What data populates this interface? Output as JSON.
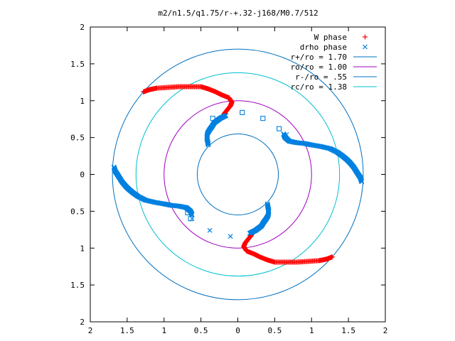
{
  "chart_data": {
    "type": "scatter",
    "title": "m2/n1.5/q1.75/r-+.32-j168/M0.7/512",
    "xlabel": "",
    "ylabel": "",
    "xlim": [
      -2,
      2
    ],
    "ylim": [
      -2,
      2
    ],
    "x_ticks": [
      "2",
      "1.5",
      "1",
      "0.5",
      "0",
      "0.5",
      "1",
      "1.5",
      "2"
    ],
    "y_ticks": [
      "2",
      "1.5",
      "1",
      "0.5",
      "0",
      "0.5",
      "1",
      "1.5",
      "2"
    ],
    "grid": false,
    "legend_position": "top-right",
    "legend": [
      {
        "label": "W phase",
        "marker": "+",
        "color": "#ff0000"
      },
      {
        "label": "drho phase",
        "marker": "x",
        "color": "#0080e0"
      },
      {
        "label": "r+/ro = 1.70",
        "marker": "line",
        "color": "#0070c0"
      },
      {
        "label": "ro/ro = 1.00",
        "marker": "line",
        "color": "#a000c0"
      },
      {
        "label": "r-/ro = .55",
        "marker": "line",
        "color": "#0070c0"
      },
      {
        "label": "rc/ro = 1.38",
        "marker": "line",
        "color": "#00c0d0"
      }
    ],
    "circles": [
      {
        "name": "r+/ro = 1.70",
        "radius": 1.7,
        "color": "#0070c0"
      },
      {
        "name": "ro/ro = 1.00",
        "radius": 1.0,
        "color": "#a000c0"
      },
      {
        "name": "r-/ro = .55",
        "radius": 0.55,
        "color": "#0070c0"
      },
      {
        "name": "rc/ro = 1.38",
        "radius": 1.38,
        "color": "#00c0d0"
      }
    ],
    "series": [
      {
        "name": "W phase",
        "color": "#ff0000",
        "marker": "+",
        "arms": [
          [
            [
              -1.28,
              1.12
            ],
            [
              -1.2,
              1.15
            ],
            [
              -1.1,
              1.17
            ],
            [
              -0.95,
              1.18
            ],
            [
              -0.8,
              1.19
            ],
            [
              -0.65,
              1.19
            ],
            [
              -0.5,
              1.19
            ],
            [
              -0.4,
              1.16
            ],
            [
              -0.3,
              1.12
            ],
            [
              -0.22,
              1.08
            ],
            [
              -0.12,
              1.04
            ],
            [
              -0.08,
              0.98
            ],
            [
              -0.1,
              0.93
            ],
            [
              -0.14,
              0.88
            ],
            [
              -0.18,
              0.83
            ],
            [
              -0.2,
              0.79
            ]
          ],
          [
            [
              1.28,
              -1.12
            ],
            [
              1.2,
              -1.15
            ],
            [
              1.1,
              -1.17
            ],
            [
              0.95,
              -1.18
            ],
            [
              0.8,
              -1.19
            ],
            [
              0.65,
              -1.19
            ],
            [
              0.5,
              -1.19
            ],
            [
              0.4,
              -1.16
            ],
            [
              0.3,
              -1.12
            ],
            [
              0.22,
              -1.08
            ],
            [
              0.12,
              -1.04
            ],
            [
              0.08,
              -0.98
            ],
            [
              0.1,
              -0.93
            ],
            [
              0.14,
              -0.88
            ],
            [
              0.18,
              -0.83
            ],
            [
              0.2,
              -0.79
            ]
          ]
        ]
      },
      {
        "name": "drho phase",
        "color": "#0080e0",
        "marker": "x",
        "arms": [
          [
            [
              -0.4,
              0.4
            ],
            [
              -0.41,
              0.45
            ],
            [
              -0.42,
              0.5
            ],
            [
              -0.41,
              0.56
            ],
            [
              -0.38,
              0.61
            ],
            [
              -0.35,
              0.65
            ],
            [
              -0.32,
              0.7
            ],
            [
              -0.28,
              0.73
            ],
            [
              -0.24,
              0.76
            ],
            [
              -0.2,
              0.78
            ],
            [
              -0.16,
              0.8
            ]
          ],
          [
            [
              0.4,
              -0.4
            ],
            [
              0.41,
              -0.45
            ],
            [
              0.42,
              -0.5
            ],
            [
              0.41,
              -0.56
            ],
            [
              0.38,
              -0.61
            ],
            [
              0.35,
              -0.65
            ],
            [
              0.32,
              -0.7
            ],
            [
              0.28,
              -0.73
            ],
            [
              0.24,
              -0.76
            ],
            [
              0.2,
              -0.78
            ],
            [
              0.16,
              -0.8
            ]
          ],
          [
            [
              1.68,
              -0.1
            ],
            [
              1.66,
              -0.04
            ],
            [
              1.62,
              0.02
            ],
            [
              1.57,
              0.1
            ],
            [
              1.52,
              0.16
            ],
            [
              1.48,
              0.2
            ],
            [
              1.42,
              0.25
            ],
            [
              1.35,
              0.3
            ],
            [
              1.25,
              0.35
            ],
            [
              1.12,
              0.38
            ],
            [
              1.0,
              0.4
            ],
            [
              0.9,
              0.42
            ],
            [
              0.8,
              0.43
            ],
            [
              0.7,
              0.45
            ],
            [
              0.64,
              0.5
            ],
            [
              0.62,
              0.55
            ]
          ],
          [
            [
              -1.68,
              0.1
            ],
            [
              -1.66,
              0.04
            ],
            [
              -1.62,
              -0.02
            ],
            [
              -1.57,
              -0.1
            ],
            [
              -1.52,
              -0.16
            ],
            [
              -1.48,
              -0.2
            ],
            [
              -1.42,
              -0.25
            ],
            [
              -1.35,
              -0.3
            ],
            [
              -1.25,
              -0.35
            ],
            [
              -1.12,
              -0.38
            ],
            [
              -1.0,
              -0.4
            ],
            [
              -0.9,
              -0.42
            ],
            [
              -0.8,
              -0.43
            ],
            [
              -0.7,
              -0.45
            ],
            [
              -0.64,
              -0.5
            ],
            [
              -0.62,
              -0.55
            ]
          ]
        ],
        "scattered": [
          [
            -0.62,
            -0.6
          ],
          [
            -0.38,
            -0.76
          ],
          [
            -0.1,
            -0.84
          ],
          [
            0.66,
            0.54
          ]
        ],
        "squares": [
          [
            0.06,
            0.84
          ],
          [
            0.34,
            0.76
          ],
          [
            0.56,
            0.62
          ],
          [
            -0.34,
            0.76
          ],
          [
            -0.68,
            -0.52
          ],
          [
            -0.64,
            -0.6
          ]
        ]
      }
    ]
  }
}
